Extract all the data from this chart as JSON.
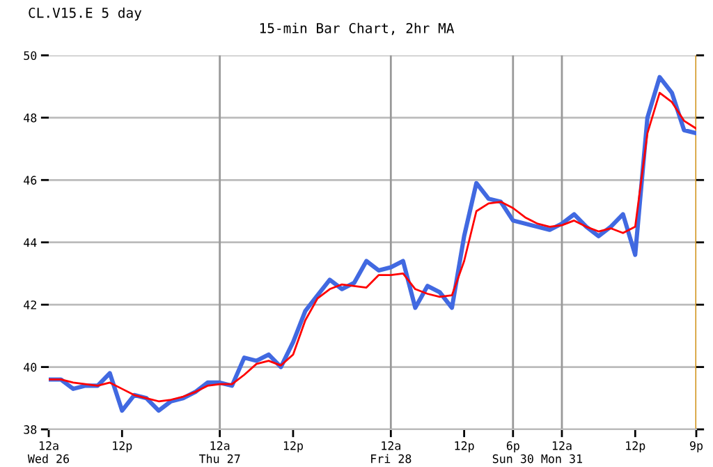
{
  "chart_data": {
    "type": "line",
    "title": "CL.V15.E 5 day",
    "subtitle": "15-min Bar Chart, 2hr MA",
    "categories": [
      "12a\nWed 26",
      null,
      null,
      null,
      null,
      null,
      "12p",
      null,
      null,
      null,
      null,
      null,
      null,
      null,
      "12a\nThu 27",
      null,
      null,
      null,
      null,
      null,
      "12p",
      null,
      null,
      null,
      null,
      null,
      null,
      null,
      "12a\nFri 28",
      null,
      null,
      null,
      null,
      null,
      "12p",
      null,
      null,
      null,
      "6p\nSun 30",
      null,
      null,
      null,
      "12a\nMon 31",
      null,
      null,
      null,
      null,
      null,
      "12p",
      null,
      null,
      null,
      null,
      "9p"
    ],
    "ylim": [
      38,
      50
    ],
    "yticks": [
      38,
      40,
      42,
      44,
      46,
      48,
      50
    ],
    "grid": "y",
    "line_style": "solid",
    "marker": "none",
    "ref_lines": [
      {
        "axis": "x",
        "value": "12a\nThu 27",
        "color": "#999999"
      },
      {
        "axis": "x",
        "value": "12a\nFri 28",
        "color": "#999999"
      },
      {
        "axis": "x",
        "value": "6p\nSun 30",
        "color": "#999999"
      },
      {
        "axis": "x",
        "value": "12a\nMon 31",
        "color": "#999999"
      },
      {
        "axis": "x",
        "value": "9p",
        "color": "#cc8800"
      }
    ],
    "series": [
      {
        "color": "#4169e1",
        "values": [
          39.6,
          39.6,
          39.3,
          39.4,
          39.4,
          39.8,
          38.6,
          39.1,
          39.0,
          38.6,
          38.9,
          39.0,
          39.2,
          39.5,
          39.5,
          39.4,
          40.3,
          40.2,
          40.4,
          40.0,
          40.8,
          41.8,
          42.3,
          42.8,
          42.5,
          42.7,
          43.4,
          43.1,
          43.2,
          43.4,
          41.9,
          42.6,
          42.4,
          41.9,
          44.2,
          45.9,
          45.4,
          45.3,
          44.7,
          44.6,
          44.5,
          44.4,
          44.6,
          44.9,
          44.5,
          44.2,
          44.5,
          44.9,
          43.6,
          48.0,
          49.3,
          48.8,
          47.6,
          47.5
        ]
      },
      {
        "color": "#ff0000",
        "values": [
          39.6,
          39.6,
          39.5,
          39.45,
          39.4,
          39.5,
          39.3,
          39.1,
          39.0,
          38.9,
          38.95,
          39.05,
          39.2,
          39.4,
          39.45,
          39.45,
          39.75,
          40.1,
          40.2,
          40.05,
          40.4,
          41.5,
          42.2,
          42.5,
          42.65,
          42.6,
          42.55,
          42.95,
          42.95,
          43.0,
          42.5,
          42.35,
          42.25,
          42.3,
          43.4,
          45.0,
          45.25,
          45.3,
          45.1,
          44.8,
          44.6,
          44.5,
          44.55,
          44.7,
          44.5,
          44.35,
          44.45,
          44.3,
          44.5,
          47.5,
          48.8,
          48.5,
          47.9,
          47.65
        ]
      }
    ]
  }
}
